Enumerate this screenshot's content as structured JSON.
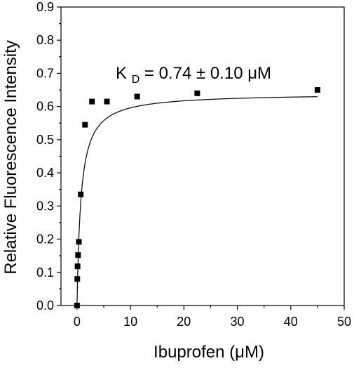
{
  "chart_data": {
    "type": "scatter",
    "title": "",
    "xlabel": "Ibuprofen (μM)",
    "ylabel": "Relative Fluorescence Intensity",
    "xlim": [
      -3,
      50
    ],
    "ylim": [
      0,
      0.9
    ],
    "x_ticks": [
      0,
      10,
      20,
      30,
      40,
      50
    ],
    "x_tick_labels": [
      "0",
      "10",
      "20",
      "30",
      "40",
      "50"
    ],
    "y_ticks": [
      0,
      0.1,
      0.2,
      0.3,
      0.4,
      0.5,
      0.6,
      0.7,
      0.8,
      0.9
    ],
    "y_tick_labels": [
      "0.0",
      "0.1",
      "0.2",
      "0.3",
      "0.4",
      "0.5",
      "0.6",
      "0.7",
      "0.8",
      "0.9"
    ],
    "grid": false,
    "legend": "none",
    "colors": {
      "axis": "#000000",
      "marker": "#000000",
      "fit_line": "#000000",
      "background": "#ffffff"
    },
    "series": [
      {
        "marker": "square",
        "points": [
          {
            "x": 0,
            "y": 0.0
          },
          {
            "x": 0.05,
            "y": 0.08
          },
          {
            "x": 0.1,
            "y": 0.118
          },
          {
            "x": 0.2,
            "y": 0.152
          },
          {
            "x": 0.35,
            "y": 0.192
          },
          {
            "x": 0.7,
            "y": 0.335
          },
          {
            "x": 1.5,
            "y": 0.545
          },
          {
            "x": 2.8,
            "y": 0.615
          },
          {
            "x": 5.6,
            "y": 0.615
          },
          {
            "x": 11.25,
            "y": 0.63
          },
          {
            "x": 22.5,
            "y": 0.64
          },
          {
            "x": 45,
            "y": 0.65
          }
        ]
      }
    ],
    "fit": {
      "type": "line",
      "model": "one-site binding",
      "Bmax": 0.64,
      "Kd": 0.74,
      "x_range": [
        0,
        45
      ]
    },
    "annotations": {
      "kd_label": {
        "main": "K",
        "subscript": "D",
        "rest": " = 0.74 ± 0.10 μM"
      }
    }
  }
}
